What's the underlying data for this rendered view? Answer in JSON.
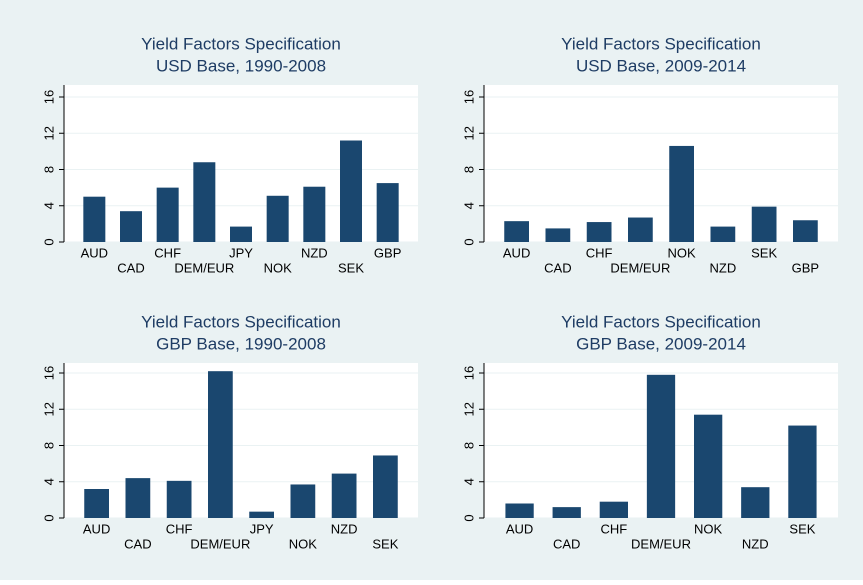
{
  "chart_data": [
    {
      "type": "bar",
      "title": "Yield Factors Specification",
      "subtitle": "USD Base, 1990-2008",
      "categories": [
        "AUD",
        "CAD",
        "CHF",
        "DEM/EUR",
        "JPY",
        "NOK",
        "NZD",
        "SEK",
        "GBP"
      ],
      "values": [
        5.0,
        3.4,
        6.0,
        8.8,
        1.7,
        5.1,
        6.1,
        11.2,
        6.5
      ],
      "color": "#1a476f",
      "ylim": [
        0,
        16
      ],
      "yticks": [
        0,
        4,
        8,
        12,
        16
      ],
      "grid": true
    },
    {
      "type": "bar",
      "title": "Yield Factors Specification",
      "subtitle": "USD Base, 2009-2014",
      "categories": [
        "AUD",
        "CAD",
        "CHF",
        "DEM/EUR",
        "NOK",
        "NZD",
        "SEK",
        "GBP"
      ],
      "values": [
        2.3,
        1.5,
        2.2,
        2.7,
        10.6,
        1.7,
        3.9,
        2.4
      ],
      "color": "#1a476f",
      "ylim": [
        0,
        16
      ],
      "yticks": [
        0,
        4,
        8,
        12,
        16
      ],
      "grid": true
    },
    {
      "type": "bar",
      "title": "Yield Factors Specification",
      "subtitle": "GBP Base, 1990-2008",
      "categories": [
        "AUD",
        "CAD",
        "CHF",
        "DEM/EUR",
        "JPY",
        "NOK",
        "NZD",
        "SEK"
      ],
      "values": [
        3.2,
        4.4,
        4.1,
        16.2,
        0.7,
        3.7,
        4.9,
        6.9
      ],
      "color": "#1a476f",
      "ylim": [
        0,
        16
      ],
      "yticks": [
        0,
        4,
        8,
        12,
        16
      ],
      "grid": true
    },
    {
      "type": "bar",
      "title": "Yield Factors Specification",
      "subtitle": "GBP Base, 2009-2014",
      "categories": [
        "AUD",
        "CAD",
        "CHF",
        "DEM/EUR",
        "NOK",
        "NZD",
        "SEK"
      ],
      "values": [
        1.6,
        1.2,
        1.8,
        15.8,
        11.4,
        3.4,
        10.2
      ],
      "color": "#1a476f",
      "ylim": [
        0,
        16
      ],
      "yticks": [
        0,
        4,
        8,
        12,
        16
      ],
      "grid": true
    }
  ]
}
